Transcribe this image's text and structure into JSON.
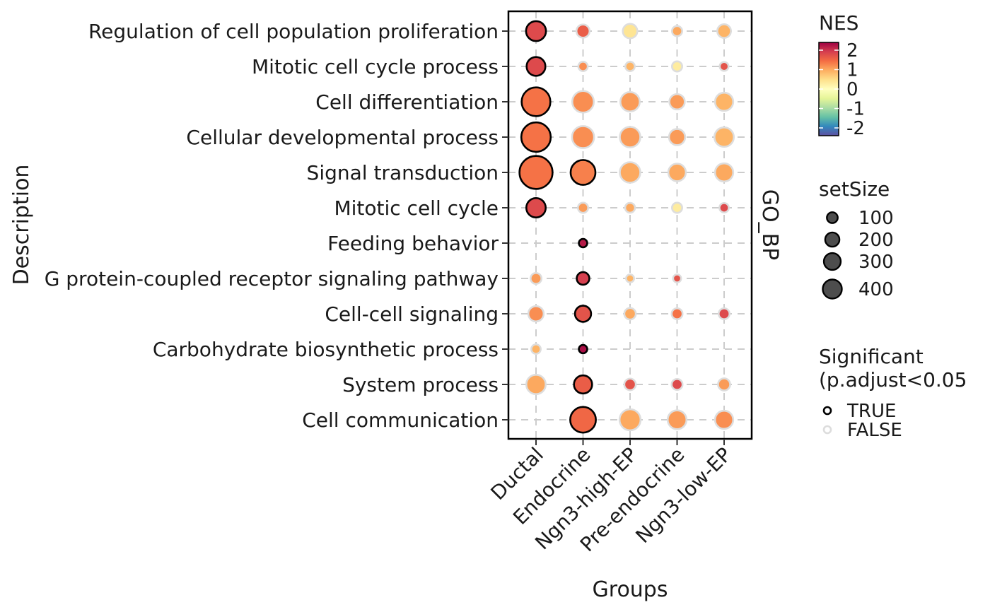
{
  "chart_data": {
    "type": "dot",
    "title": "",
    "xlabel": "Groups",
    "ylabel": "Description",
    "facet_label": "GO_BP",
    "groups": [
      "Ductal",
      "Endocrine",
      "Ngn3-high-EP",
      "Pre-endocrine",
      "Ngn3-low-EP"
    ],
    "terms": [
      "Regulation of cell population proliferation",
      "Mitotic cell cycle process",
      "Cell differentiation",
      "Cellular developmental process",
      "Signal transduction",
      "Mitotic cell cycle",
      "Feeding behavior",
      "G protein-coupled receptor signaling pathway",
      "Cell-cell signaling",
      "Carbohydrate biosynthetic process",
      "System process",
      "Cell communication"
    ],
    "points": [
      {
        "term": "Regulation of cell population proliferation",
        "group": "Ductal",
        "NES": 1.8,
        "setSize": 140,
        "significant": true
      },
      {
        "term": "Regulation of cell population proliferation",
        "group": "Endocrine",
        "NES": 1.6,
        "setSize": 45,
        "significant": false
      },
      {
        "term": "Regulation of cell population proliferation",
        "group": "Ngn3-high-EP",
        "NES": 0.4,
        "setSize": 60,
        "significant": false
      },
      {
        "term": "Regulation of cell population proliferation",
        "group": "Pre-endocrine",
        "NES": 1.0,
        "setSize": 20,
        "significant": false
      },
      {
        "term": "Regulation of cell population proliferation",
        "group": "Ngn3-low-EP",
        "NES": 0.9,
        "setSize": 50,
        "significant": false
      },
      {
        "term": "Mitotic cell cycle process",
        "group": "Ductal",
        "NES": 1.8,
        "setSize": 120,
        "significant": true
      },
      {
        "term": "Mitotic cell cycle process",
        "group": "Endocrine",
        "NES": 1.2,
        "setSize": 15,
        "significant": false
      },
      {
        "term": "Mitotic cell cycle process",
        "group": "Ngn3-high-EP",
        "NES": 0.9,
        "setSize": 15,
        "significant": false
      },
      {
        "term": "Mitotic cell cycle process",
        "group": "Pre-endocrine",
        "NES": 0.3,
        "setSize": 20,
        "significant": false
      },
      {
        "term": "Mitotic cell cycle process",
        "group": "Ngn3-low-EP",
        "NES": 1.7,
        "setSize": 12,
        "significant": false
      },
      {
        "term": "Cell differentiation",
        "group": "Ductal",
        "NES": 1.4,
        "setSize": 340,
        "significant": true
      },
      {
        "term": "Cell differentiation",
        "group": "Endocrine",
        "NES": 1.2,
        "setSize": 170,
        "significant": false
      },
      {
        "term": "Cell differentiation",
        "group": "Ngn3-high-EP",
        "NES": 1.1,
        "setSize": 130,
        "significant": false
      },
      {
        "term": "Cell differentiation",
        "group": "Pre-endocrine",
        "NES": 1.1,
        "setSize": 70,
        "significant": false
      },
      {
        "term": "Cell differentiation",
        "group": "Ngn3-low-EP",
        "NES": 0.9,
        "setSize": 110,
        "significant": false
      },
      {
        "term": "Cellular developmental process",
        "group": "Ductal",
        "NES": 1.4,
        "setSize": 360,
        "significant": true
      },
      {
        "term": "Cellular developmental process",
        "group": "Endocrine",
        "NES": 1.2,
        "setSize": 180,
        "significant": false
      },
      {
        "term": "Cellular developmental process",
        "group": "Ngn3-high-EP",
        "NES": 1.1,
        "setSize": 150,
        "significant": false
      },
      {
        "term": "Cellular developmental process",
        "group": "Pre-endocrine",
        "NES": 1.1,
        "setSize": 80,
        "significant": false
      },
      {
        "term": "Cellular developmental process",
        "group": "Ngn3-low-EP",
        "NES": 0.9,
        "setSize": 130,
        "significant": false
      },
      {
        "term": "Signal transduction",
        "group": "Ductal",
        "NES": 1.4,
        "setSize": 470,
        "significant": true
      },
      {
        "term": "Signal transduction",
        "group": "Endocrine",
        "NES": 1.3,
        "setSize": 240,
        "significant": true
      },
      {
        "term": "Signal transduction",
        "group": "Ngn3-high-EP",
        "NES": 1.0,
        "setSize": 150,
        "significant": false
      },
      {
        "term": "Signal transduction",
        "group": "Pre-endocrine",
        "NES": 1.0,
        "setSize": 100,
        "significant": false
      },
      {
        "term": "Signal transduction",
        "group": "Ngn3-low-EP",
        "NES": 1.0,
        "setSize": 110,
        "significant": false
      },
      {
        "term": "Mitotic cell cycle",
        "group": "Ductal",
        "NES": 1.8,
        "setSize": 130,
        "significant": true
      },
      {
        "term": "Mitotic cell cycle",
        "group": "Endocrine",
        "NES": 1.1,
        "setSize": 20,
        "significant": false
      },
      {
        "term": "Mitotic cell cycle",
        "group": "Ngn3-high-EP",
        "NES": 1.0,
        "setSize": 18,
        "significant": false
      },
      {
        "term": "Mitotic cell cycle",
        "group": "Pre-endocrine",
        "NES": 0.3,
        "setSize": 20,
        "significant": false
      },
      {
        "term": "Mitotic cell cycle",
        "group": "Ngn3-low-EP",
        "NES": 1.8,
        "setSize": 15,
        "significant": false
      },
      {
        "term": "Feeding behavior",
        "group": "Endocrine",
        "NES": 2.2,
        "setSize": 10,
        "significant": true
      },
      {
        "term": "G protein-coupled receptor signaling pathway",
        "group": "Ductal",
        "NES": 1.1,
        "setSize": 25,
        "significant": false
      },
      {
        "term": "G protein-coupled receptor signaling pathway",
        "group": "Endocrine",
        "NES": 1.9,
        "setSize": 40,
        "significant": true
      },
      {
        "term": "G protein-coupled receptor signaling pathway",
        "group": "Ngn3-high-EP",
        "NES": 0.9,
        "setSize": 8,
        "significant": false
      },
      {
        "term": "G protein-coupled receptor signaling pathway",
        "group": "Pre-endocrine",
        "NES": 1.7,
        "setSize": 8,
        "significant": false
      },
      {
        "term": "Cell-cell signaling",
        "group": "Ductal",
        "NES": 1.2,
        "setSize": 70,
        "significant": false
      },
      {
        "term": "Cell-cell signaling",
        "group": "Endocrine",
        "NES": 1.7,
        "setSize": 80,
        "significant": true
      },
      {
        "term": "Cell-cell signaling",
        "group": "Ngn3-high-EP",
        "NES": 1.0,
        "setSize": 30,
        "significant": false
      },
      {
        "term": "Cell-cell signaling",
        "group": "Pre-endocrine",
        "NES": 1.4,
        "setSize": 25,
        "significant": false
      },
      {
        "term": "Cell-cell signaling",
        "group": "Ngn3-low-EP",
        "NES": 1.8,
        "setSize": 25,
        "significant": false
      },
      {
        "term": "Carbohydrate biosynthetic process",
        "group": "Ductal",
        "NES": 0.9,
        "setSize": 15,
        "significant": false
      },
      {
        "term": "Carbohydrate biosynthetic process",
        "group": "Endocrine",
        "NES": 2.3,
        "setSize": 10,
        "significant": true
      },
      {
        "term": "System process",
        "group": "Ductal",
        "NES": 1.0,
        "setSize": 130,
        "significant": false
      },
      {
        "term": "System process",
        "group": "Endocrine",
        "NES": 1.6,
        "setSize": 110,
        "significant": true
      },
      {
        "term": "System process",
        "group": "Ngn3-high-EP",
        "NES": 1.7,
        "setSize": 30,
        "significant": false
      },
      {
        "term": "System process",
        "group": "Pre-endocrine",
        "NES": 1.8,
        "setSize": 25,
        "significant": false
      },
      {
        "term": "System process",
        "group": "Ngn3-low-EP",
        "NES": 1.1,
        "setSize": 35,
        "significant": false
      },
      {
        "term": "Cell communication",
        "group": "Endocrine",
        "NES": 1.5,
        "setSize": 260,
        "significant": true
      },
      {
        "term": "Cell communication",
        "group": "Ngn3-high-EP",
        "NES": 1.0,
        "setSize": 160,
        "significant": false
      },
      {
        "term": "Cell communication",
        "group": "Pre-endocrine",
        "NES": 1.1,
        "setSize": 120,
        "significant": false
      },
      {
        "term": "Cell communication",
        "group": "Ngn3-low-EP",
        "NES": 1.2,
        "setSize": 110,
        "significant": false
      }
    ],
    "color_legend": {
      "title": "NES",
      "ticks": [
        2,
        1,
        0,
        -1,
        -2
      ],
      "tick_labels": [
        "2",
        "1",
        "0",
        "-1",
        "-2"
      ],
      "range": [
        -2.4,
        2.4
      ],
      "palette": [
        "#9E0142",
        "#D53E4F",
        "#F46D43",
        "#FDAE61",
        "#FEE08B",
        "#FFFFBF",
        "#E6F598",
        "#ABDDA4",
        "#66C2A5",
        "#3288BD",
        "#5E4FA2"
      ]
    },
    "size_legend": {
      "title": "setSize",
      "values": [
        100,
        200,
        300,
        400
      ],
      "labels": [
        "100",
        "200",
        "300",
        "400"
      ]
    },
    "significance_legend": {
      "title_line1": "Significant",
      "title_line2": "(p.adjust<0.05",
      "entries": [
        "TRUE",
        "FALSE"
      ],
      "border_colors": [
        "#000000",
        "#DDDDDD"
      ]
    },
    "grid": true,
    "panel_border": true
  }
}
